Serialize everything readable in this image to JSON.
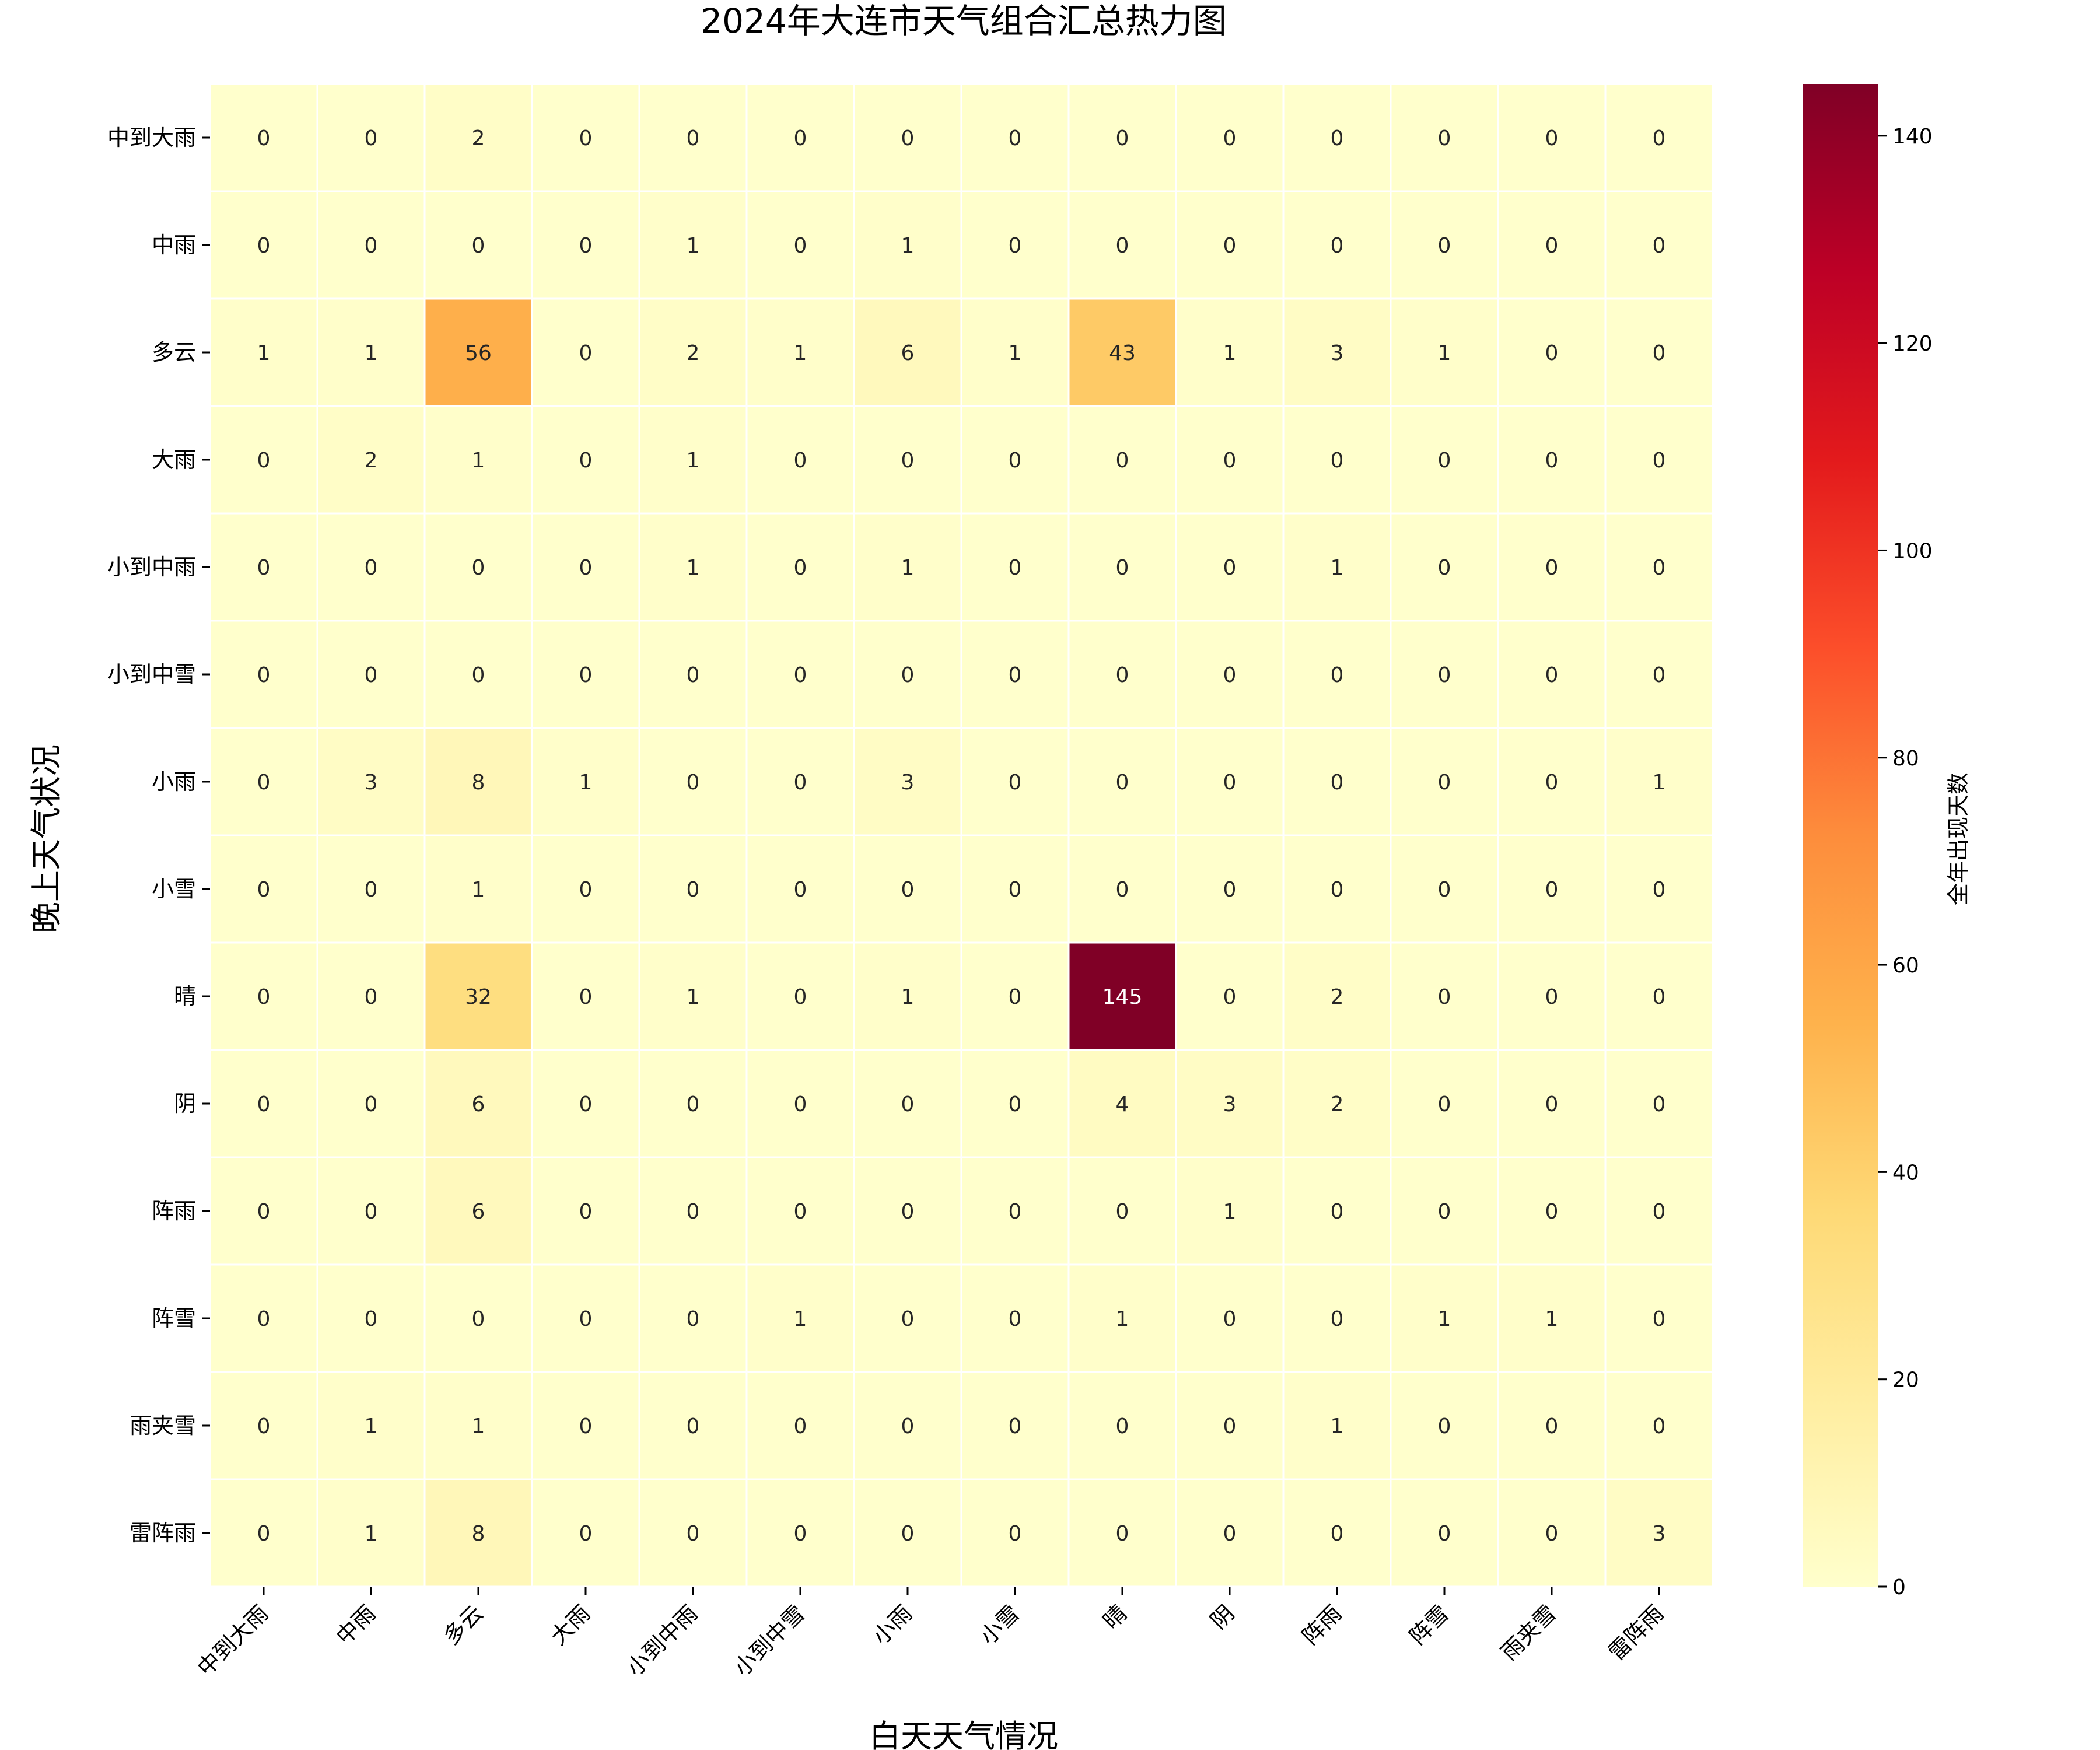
{
  "chart_data": {
    "type": "heatmap",
    "title": "2024年大连市天气组合汇总热力图",
    "xlabel": "白天天气情况",
    "ylabel": "晚上天气状况",
    "x_categories": [
      "中到大雨",
      "中雨",
      "多云",
      "大雨",
      "小到中雨",
      "小到中雪",
      "小雨",
      "小雪",
      "晴",
      "阴",
      "阵雨",
      "阵雪",
      "雨夹雪",
      "雷阵雨"
    ],
    "y_categories": [
      "中到大雨",
      "中雨",
      "多云",
      "大雨",
      "小到中雨",
      "小到中雪",
      "小雨",
      "小雪",
      "晴",
      "阴",
      "阵雨",
      "阵雪",
      "雨夹雪",
      "雷阵雨"
    ],
    "values": [
      [
        0,
        0,
        2,
        0,
        0,
        0,
        0,
        0,
        0,
        0,
        0,
        0,
        0,
        0
      ],
      [
        0,
        0,
        0,
        0,
        1,
        0,
        1,
        0,
        0,
        0,
        0,
        0,
        0,
        0
      ],
      [
        1,
        1,
        56,
        0,
        2,
        1,
        6,
        1,
        43,
        1,
        3,
        1,
        0,
        0
      ],
      [
        0,
        2,
        1,
        0,
        1,
        0,
        0,
        0,
        0,
        0,
        0,
        0,
        0,
        0
      ],
      [
        0,
        0,
        0,
        0,
        1,
        0,
        1,
        0,
        0,
        0,
        1,
        0,
        0,
        0
      ],
      [
        0,
        0,
        0,
        0,
        0,
        0,
        0,
        0,
        0,
        0,
        0,
        0,
        0,
        0
      ],
      [
        0,
        3,
        8,
        1,
        0,
        0,
        3,
        0,
        0,
        0,
        0,
        0,
        0,
        1
      ],
      [
        0,
        0,
        1,
        0,
        0,
        0,
        0,
        0,
        0,
        0,
        0,
        0,
        0,
        0
      ],
      [
        0,
        0,
        32,
        0,
        1,
        0,
        1,
        0,
        145,
        0,
        2,
        0,
        0,
        0
      ],
      [
        0,
        0,
        6,
        0,
        0,
        0,
        0,
        0,
        4,
        3,
        2,
        0,
        0,
        0
      ],
      [
        0,
        0,
        6,
        0,
        0,
        0,
        0,
        0,
        0,
        1,
        0,
        0,
        0,
        0
      ],
      [
        0,
        0,
        0,
        0,
        0,
        1,
        0,
        0,
        1,
        0,
        0,
        1,
        1,
        0
      ],
      [
        0,
        1,
        1,
        0,
        0,
        0,
        0,
        0,
        0,
        0,
        1,
        0,
        0,
        0
      ],
      [
        0,
        1,
        8,
        0,
        0,
        0,
        0,
        0,
        0,
        0,
        0,
        0,
        0,
        3
      ]
    ],
    "colorbar": {
      "label": "全年出现天数",
      "range": [
        0,
        145
      ],
      "ticks": [
        0,
        20,
        40,
        60,
        80,
        100,
        120,
        140
      ]
    },
    "colormap": "YlOrRd",
    "colormap_stops": [
      "#ffffcc",
      "#ffeda0",
      "#fed976",
      "#feb24c",
      "#fd8d3c",
      "#fc4e2a",
      "#e31a1c",
      "#bd0026",
      "#800026"
    ],
    "cell_border_color": "#ffffff",
    "annotation_colors": {
      "dark": "#262626",
      "light": "#ffffff"
    }
  }
}
